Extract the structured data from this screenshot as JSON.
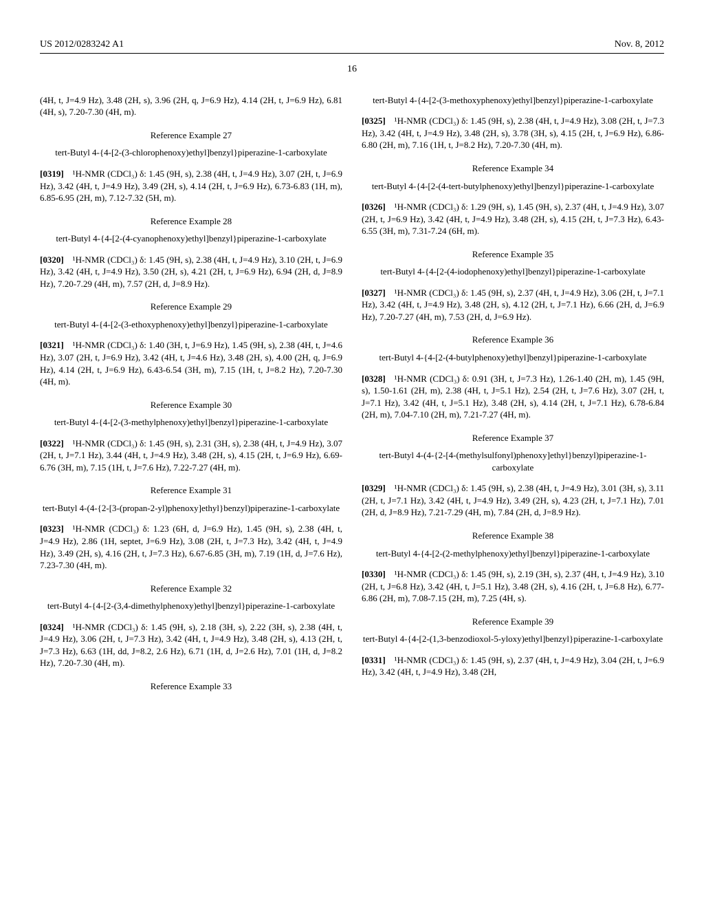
{
  "header": {
    "pub": "US 2012/0283242 A1",
    "date": "Nov. 8, 2012",
    "page": "16"
  },
  "lead_frag": "(4H, t, J=4.9 Hz), 3.48 (2H, s), 3.96 (2H, q, J=6.9 Hz), 4.14 (2H, t, J=6.9 Hz), 6.81 (4H, s), 7.20-7.30 (4H, m).",
  "entries": [
    {
      "ref": "Reference Example 27",
      "cmpd": "tert-Butyl 4-{4-[2-(3-chlorophenoxy)ethyl]benzyl}piperazine-1-carboxylate",
      "pn": "[0319]",
      "nmr": "¹H-NMR (CDCl₃) δ: 1.45 (9H, s), 2.38 (4H, t, J=4.9 Hz), 3.07 (2H, t, J=6.9 Hz), 3.42 (4H, t, J=4.9 Hz), 3.49 (2H, s), 4.14 (2H, t, J=6.9 Hz), 6.73-6.83 (1H, m), 6.85-6.95 (2H, m), 7.12-7.32 (5H, m)."
    },
    {
      "ref": "Reference Example 28",
      "cmpd": "tert-Butyl 4-{4-[2-(4-cyanophenoxy)ethyl]benzyl}piperazine-1-carboxylate",
      "pn": "[0320]",
      "nmr": "¹H-NMR (CDCl₃) δ: 1.45 (9H, s), 2.38 (4H, t, J=4.9 Hz), 3.10 (2H, t, J=6.9 Hz), 3.42 (4H, t, J=4.9 Hz), 3.50 (2H, s), 4.21 (2H, t, J=6.9 Hz), 6.94 (2H, d, J=8.9 Hz), 7.20-7.29 (4H, m), 7.57 (2H, d, J=8.9 Hz)."
    },
    {
      "ref": "Reference Example 29",
      "cmpd": "tert-Butyl 4-{4-[2-(3-ethoxyphenoxy)ethyl]benzyl}piperazine-1-carboxylate",
      "pn": "[0321]",
      "nmr": "¹H-NMR (CDCl₃) δ: 1.40 (3H, t, J=6.9 Hz), 1.45 (9H, s), 2.38 (4H, t, J=4.6 Hz), 3.07 (2H, t, J=6.9 Hz), 3.42 (4H, t, J=4.6 Hz), 3.48 (2H, s), 4.00 (2H, q, J=6.9 Hz), 4.14 (2H, t, J=6.9 Hz), 6.43-6.54 (3H, m), 7.15 (1H, t, J=8.2 Hz), 7.20-7.30 (4H, m)."
    },
    {
      "ref": "Reference Example 30",
      "cmpd": "tert-Butyl 4-{4-[2-(3-methylphenoxy)ethyl]benzyl}piperazine-1-carboxylate",
      "pn": "[0322]",
      "nmr": "¹H-NMR (CDCl₃) δ: 1.45 (9H, s), 2.31 (3H, s), 2.38 (4H, t, J=4.9 Hz), 3.07 (2H, t, J=7.1 Hz), 3.44 (4H, t, J=4.9 Hz), 3.48 (2H, s), 4.15 (2H, t, J=6.9 Hz), 6.69-6.76 (3H, m), 7.15 (1H, t, J=7.6 Hz), 7.22-7.27 (4H, m)."
    },
    {
      "ref": "Reference Example 31",
      "cmpd": "tert-Butyl 4-(4-{2-[3-(propan-2-yl)phenoxy]ethyl}benzyl)piperazine-1-carboxylate",
      "pn": "[0323]",
      "nmr": "¹H-NMR (CDCl₃) δ: 1.23 (6H, d, J=6.9 Hz), 1.45 (9H, s), 2.38 (4H, t, J=4.9 Hz), 2.86 (1H, septet, J=6.9 Hz), 3.08 (2H, t, J=7.3 Hz), 3.42 (4H, t, J=4.9 Hz), 3.49 (2H, s), 4.16 (2H, t, J=7.3 Hz), 6.67-6.85 (3H, m), 7.19 (1H, d, J=7.6 Hz), 7.23-7.30 (4H, m)."
    },
    {
      "ref": "Reference Example 32",
      "cmpd": "tert-Butyl 4-{4-[2-(3,4-dimethylphenoxy)ethyl]benzyl}piperazine-1-carboxylate",
      "pn": "[0324]",
      "nmr": "¹H-NMR (CDCl₃) δ: 1.45 (9H, s), 2.18 (3H, s), 2.22 (3H, s), 2.38 (4H, t, J=4.9 Hz), 3.06 (2H, t, J=7.3 Hz), 3.42 (4H, t, J=4.9 Hz), 3.48 (2H, s), 4.13 (2H, t, J=7.3 Hz), 6.63 (1H, dd, J=8.2, 2.6 Hz), 6.71 (1H, d, J=2.6 Hz), 7.01 (1H, d, J=8.2 Hz), 7.20-7.30 (4H, m)."
    },
    {
      "ref": "Reference Example 33",
      "cmpd": "tert-Butyl 4-{4-[2-(3-methoxyphenoxy)ethyl]benzyl}piperazine-1-carboxylate",
      "pn": "[0325]",
      "nmr": "¹H-NMR (CDCl₃) δ: 1.45 (9H, s), 2.38 (4H, t, J=4.9 Hz), 3.08 (2H, t, J=7.3 Hz), 3.42 (4H, t, J=4.9 Hz), 3.48 (2H, s), 3.78 (3H, s), 4.15 (2H, t, J=6.9 Hz), 6.86-6.80 (2H, m), 7.16 (1H, t, J=8.2 Hz), 7.20-7.30 (4H, m)."
    },
    {
      "ref": "Reference Example 34",
      "cmpd": "tert-Butyl 4-{4-[2-(4-tert-butylphenoxy)ethyl]benzyl}piperazine-1-carboxylate",
      "pn": "[0326]",
      "nmr": "¹H-NMR (CDCl₃) δ: 1.29 (9H, s), 1.45 (9H, s), 2.37 (4H, t, J=4.9 Hz), 3.07 (2H, t, J=6.9 Hz), 3.42 (4H, t, J=4.9 Hz), 3.48 (2H, s), 4.15 (2H, t, J=7.3 Hz), 6.43-6.55 (3H, m), 7.31-7.24 (6H, m)."
    },
    {
      "ref": "Reference Example 35",
      "cmpd": "tert-Butyl 4-{4-[2-(4-iodophenoxy)ethyl]benzyl}piperazine-1-carboxylate",
      "pn": "[0327]",
      "nmr": "¹H-NMR (CDCl₃) δ: 1.45 (9H, s), 2.37 (4H, t, J=4.9 Hz), 3.06 (2H, t, J=7.1 Hz), 3.42 (4H, t, J=4.9 Hz), 3.48 (2H, s), 4.12 (2H, t, J=7.1 Hz), 6.66 (2H, d, J=6.9 Hz), 7.20-7.27 (4H, m), 7.53 (2H, d, J=6.9 Hz)."
    },
    {
      "ref": "Reference Example 36",
      "cmpd": "tert-Butyl 4-{4-[2-(4-butylphenoxy)ethyl]benzyl}piperazine-1-carboxylate",
      "pn": "[0328]",
      "nmr": "¹H-NMR (CDCl₃) δ: 0.91 (3H, t, J=7.3 Hz), 1.26-1.40 (2H, m), 1.45 (9H, s), 1.50-1.61 (2H, m), 2.38 (4H, t, J=5.1 Hz), 2.54 (2H, t, J=7.6 Hz), 3.07 (2H, t, J=7.1 Hz), 3.42 (4H, t, J=5.1 Hz), 3.48 (2H, s), 4.14 (2H, t, J=7.1 Hz), 6.78-6.84 (2H, m), 7.04-7.10 (2H, m), 7.21-7.27 (4H, m)."
    },
    {
      "ref": "Reference Example 37",
      "cmpd": "tert-Butyl 4-(4-{2-[4-(methylsulfonyl)phenoxy]ethyl}benzyl)piperazine-1-carboxylate",
      "pn": "[0329]",
      "nmr": "¹H-NMR (CDCl₃) δ: 1.45 (9H, s), 2.38 (4H, t, J=4.9 Hz), 3.01 (3H, s), 3.11 (2H, t, J=7.1 Hz), 3.42 (4H, t, J=4.9 Hz), 3.49 (2H, s), 4.23 (2H, t, J=7.1 Hz), 7.01 (2H, d, J=8.9 Hz), 7.21-7.29 (4H, m), 7.84 (2H, d, J=8.9 Hz)."
    },
    {
      "ref": "Reference Example 38",
      "cmpd": "tert-Butyl 4-{4-[2-(2-methylphenoxy)ethyl]benzyl}piperazine-1-carboxylate",
      "pn": "[0330]",
      "nmr": "¹H-NMR (CDCl₃) δ: 1.45 (9H, s), 2.19 (3H, s), 2.37 (4H, t, J=4.9 Hz), 3.10 (2H, t, J=6.8 Hz), 3.42 (4H, t, J=5.1 Hz), 3.48 (2H, s), 4.16 (2H, t, J=6.8 Hz), 6.77-6.86 (2H, m), 7.08-7.15 (2H, m), 7.25 (4H, s)."
    },
    {
      "ref": "Reference Example 39",
      "cmpd": "tert-Butyl 4-{4-[2-(1,3-benzodioxol-5-yloxy)ethyl]benzyl}piperazine-1-carboxylate",
      "pn": "[0331]",
      "nmr": "¹H-NMR (CDCl₃) δ: 1.45 (9H, s), 2.37 (4H, t, J=4.9 Hz), 3.04 (2H, t, J=6.9 Hz), 3.42 (4H, t, J=4.9 Hz), 3.48 (2H,"
    }
  ]
}
